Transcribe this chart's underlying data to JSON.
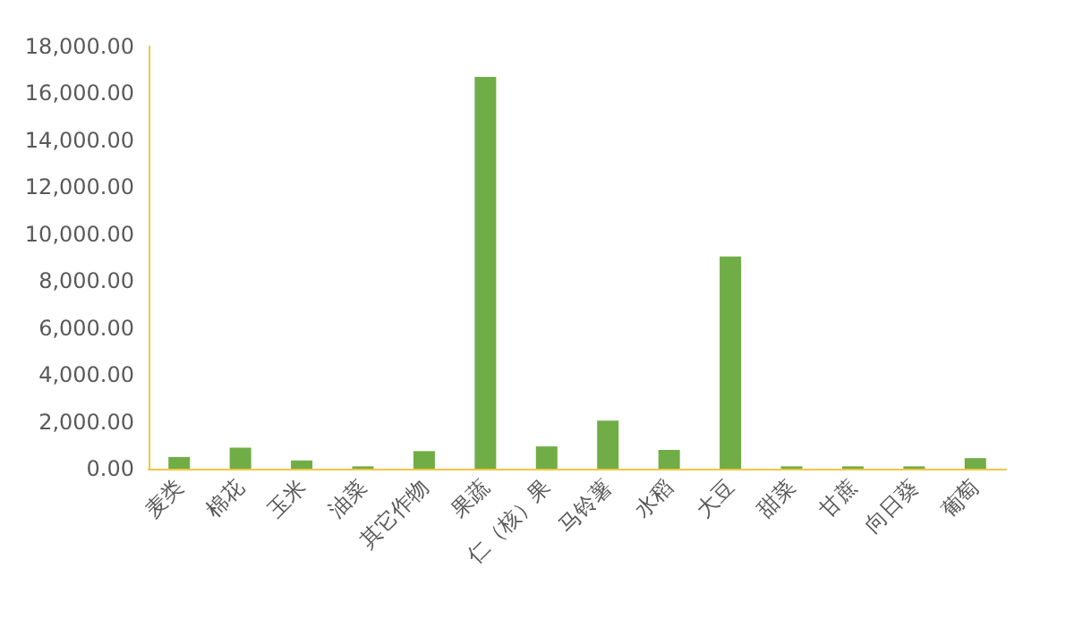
{
  "chart_data": {
    "type": "bar",
    "categories": [
      "麦类",
      "棉花",
      "玉米",
      "油菜",
      "其它作物",
      "果蔬",
      "仁（核）果",
      "马铃薯",
      "水稻",
      "大豆",
      "甜菜",
      "甘蔗",
      "向日葵",
      "葡萄"
    ],
    "values": [
      500,
      900,
      350,
      100,
      750,
      16700,
      950,
      2050,
      800,
      9050,
      100,
      100,
      100,
      450
    ],
    "color": "#70ad47",
    "ylim": [
      0,
      18000
    ],
    "yticks": [
      {
        "value": 0,
        "label": "0.00"
      },
      {
        "value": 2000,
        "label": "2,000.00"
      },
      {
        "value": 4000,
        "label": "4,000.00"
      },
      {
        "value": 6000,
        "label": "6,000.00"
      },
      {
        "value": 8000,
        "label": "8,000.00"
      },
      {
        "value": 10000,
        "label": "10,000.00"
      },
      {
        "value": 12000,
        "label": "12,000.00"
      },
      {
        "value": 14000,
        "label": "14,000.00"
      },
      {
        "value": 16000,
        "label": "16,000.00"
      },
      {
        "value": 18000,
        "label": "18,000.00"
      }
    ],
    "grid": false
  }
}
